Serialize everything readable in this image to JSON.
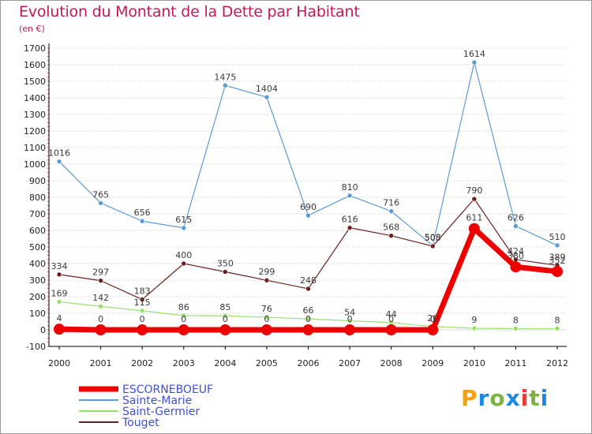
{
  "header": {
    "title": "Evolution du Montant de la Dette par Habitant",
    "unit": "(en €)"
  },
  "logo": {
    "letters": [
      "P",
      "r",
      "o",
      "x",
      "i",
      "t",
      "i"
    ]
  },
  "colors": {
    "title": "#c2185b",
    "grid": "#d9d9d9",
    "axis": "#000000",
    "escorneboeuf": "#ee0000",
    "sainte_marie": "#5b9bd5",
    "saint_germier": "#99e06b",
    "touget": "#6b1f1f"
  },
  "chart_data": {
    "type": "line",
    "title": "Evolution du Montant de la Dette par Habitant",
    "ylabel": "(en €)",
    "xlabel": "",
    "ylim": [
      -100,
      1700
    ],
    "y_ticks": [
      -100,
      0,
      100,
      200,
      300,
      400,
      500,
      600,
      700,
      800,
      900,
      1000,
      1100,
      1200,
      1300,
      1400,
      1500,
      1600,
      1700
    ],
    "grid": "horizontal",
    "legend_position": "bottom-left",
    "categories": [
      "2000",
      "2001",
      "2002",
      "2003",
      "2004",
      "2005",
      "2006",
      "2007",
      "2008",
      "2009",
      "2010",
      "2011",
      "2012"
    ],
    "series": [
      {
        "name": "ESCORNEBOEUF",
        "key": "escorneboeuf",
        "color": "#ee0000",
        "width": 7,
        "marker": 7,
        "values": [
          4,
          0,
          0,
          0,
          0,
          0,
          0,
          0,
          0,
          0,
          611,
          380,
          352
        ],
        "labels": [
          "4",
          "0",
          "0",
          "0",
          "0",
          "0",
          "0",
          "0",
          "0",
          "0",
          "611",
          "380",
          "352"
        ]
      },
      {
        "name": "Sainte-Marie",
        "key": "sainte_marie",
        "color": "#5b9bd5",
        "width": 1.2,
        "marker": 3,
        "values": [
          1016,
          765,
          656,
          615,
          1475,
          1404,
          690,
          810,
          716,
          508,
          1614,
          626,
          510
        ],
        "labels": [
          "1016",
          "765",
          "656",
          "615",
          "1475",
          "1404",
          "690",
          "810",
          "716",
          "508",
          "1614",
          "626",
          "510"
        ]
      },
      {
        "name": "Saint-Germier",
        "key": "saint_germier",
        "color": "#99e06b",
        "width": 1.2,
        "marker": 3,
        "values": [
          169,
          142,
          115,
          86,
          85,
          76,
          66,
          54,
          44,
          20,
          9,
          8,
          8
        ],
        "labels": [
          "169",
          "142",
          "115",
          "86",
          "85",
          "76",
          "66",
          "54",
          "44",
          "20",
          "9",
          "8",
          "8"
        ]
      },
      {
        "name": "Touget",
        "key": "touget",
        "color": "#6b1f1f",
        "width": 1.2,
        "marker": 3,
        "values": [
          334,
          297,
          183,
          400,
          350,
          299,
          248,
          616,
          568,
          505,
          790,
          424,
          389
        ],
        "labels": [
          "334",
          "297",
          "183",
          "400",
          "350",
          "299",
          "248",
          "616",
          "568",
          "505",
          "790",
          "424",
          "389"
        ]
      }
    ]
  }
}
